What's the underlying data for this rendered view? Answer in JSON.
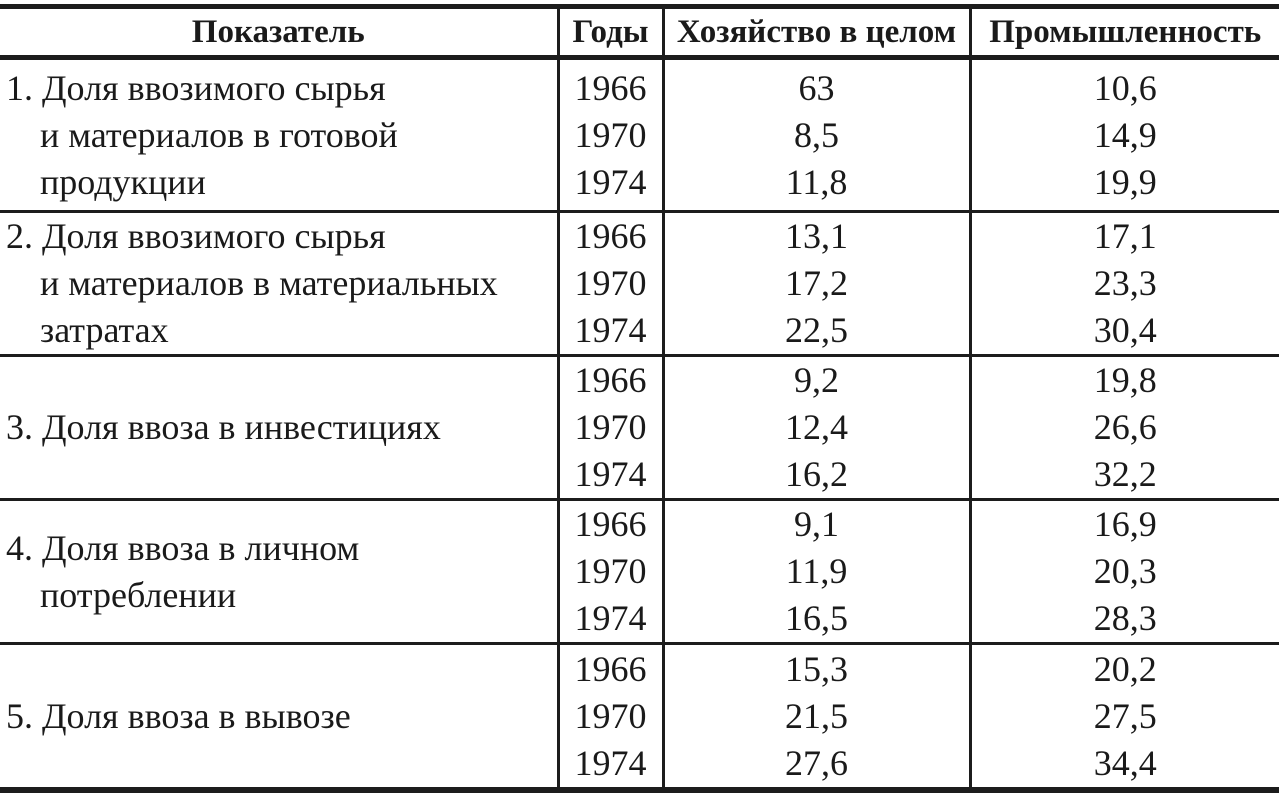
{
  "colors": {
    "text": "#1a1a1a",
    "line": "#1c1c1c",
    "background": "#ffffff"
  },
  "table": {
    "headers": {
      "indicator": "Показатель",
      "years": "Годы",
      "economy": "Хозяйство в целом",
      "industry": "Промышленность"
    },
    "rows": [
      {
        "indicator": "1. Доля ввозимого сырья и материалов в готовой продукции",
        "indicator_lines": [
          "1. Доля ввозимого сырья",
          "и материалов в готовой",
          "продукции"
        ],
        "years": [
          "1966",
          "1970",
          "1974"
        ],
        "economy": [
          "63",
          "8,5",
          "11,8"
        ],
        "industry": [
          "10,6",
          "14,9",
          "19,9"
        ]
      },
      {
        "indicator": "2. Доля ввозимого сырья и материалов в материальных затратах",
        "indicator_lines": [
          "2. Доля ввозимого сырья",
          "и материалов в материальных",
          "затратах"
        ],
        "years": [
          "1966",
          "1970",
          "1974"
        ],
        "economy": [
          "13,1",
          "17,2",
          "22,5"
        ],
        "industry": [
          "17,1",
          "23,3",
          "30,4"
        ]
      },
      {
        "indicator": "3. Доля ввоза в инвестициях",
        "indicator_lines": [
          "3. Доля ввоза в инвестициях"
        ],
        "years": [
          "1966",
          "1970",
          "1974"
        ],
        "economy": [
          "9,2",
          "12,4",
          "16,2"
        ],
        "industry": [
          "19,8",
          "26,6",
          "32,2"
        ]
      },
      {
        "indicator": "4. Доля ввоза в личном потреблении",
        "indicator_lines": [
          "4. Доля ввоза в личном",
          "потреблении"
        ],
        "years": [
          "1966",
          "1970",
          "1974"
        ],
        "economy": [
          "9,1",
          "11,9",
          "16,5"
        ],
        "industry": [
          "16,9",
          "20,3",
          "28,3"
        ]
      },
      {
        "indicator": "5. Доля ввоза в вывозе",
        "indicator_lines": [
          "5. Доля ввоза в вывозе"
        ],
        "years": [
          "1966",
          "1970",
          "1974"
        ],
        "economy": [
          "15,3",
          "21,5",
          "27,6"
        ],
        "industry": [
          "20,2",
          "27,5",
          "34,4"
        ]
      }
    ]
  }
}
